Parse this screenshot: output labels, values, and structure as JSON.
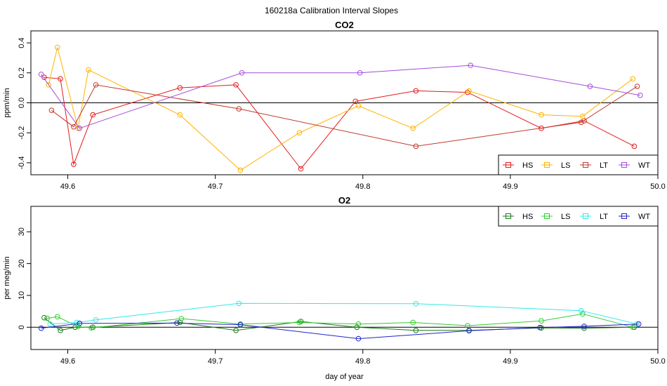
{
  "figure_title": "160218a   Calibration Interval Slopes",
  "chart_data": [
    {
      "type": "line",
      "title": "CO2",
      "xlabel": "",
      "ylabel": "ppm/min",
      "xlim": [
        49.575,
        50.0
      ],
      "ylim": [
        -0.48,
        0.48
      ],
      "xticks": [
        49.6,
        49.7,
        49.8,
        49.9,
        50.0
      ],
      "xtick_labels": [
        "49.6",
        "49.7",
        "49.8",
        "49.9",
        "50.0"
      ],
      "yticks": [
        -0.4,
        -0.2,
        0.0,
        0.2,
        0.4
      ],
      "ytick_labels": [
        "-0.4",
        "-0.2",
        "0.0",
        "0.2",
        "0.4"
      ],
      "hline": 0,
      "legend_position": "bottom-right",
      "series": [
        {
          "name": "HS",
          "color": "#e41a1c",
          "x": [
            49.584,
            49.595,
            49.604,
            49.617,
            49.676,
            49.714,
            49.758,
            49.795,
            49.836,
            49.871,
            49.921,
            49.95,
            49.984
          ],
          "y": [
            0.17,
            0.16,
            -0.41,
            -0.08,
            0.1,
            0.12,
            -0.44,
            0.01,
            0.08,
            0.07,
            -0.17,
            -0.12,
            -0.29
          ]
        },
        {
          "name": "LS",
          "color": "#ffb300",
          "x": [
            49.587,
            49.593,
            49.607,
            49.614,
            49.676,
            49.717,
            49.757,
            49.797,
            49.834,
            49.872,
            49.921,
            49.949,
            49.983
          ],
          "y": [
            0.12,
            0.37,
            -0.17,
            0.22,
            -0.08,
            -0.45,
            -0.2,
            -0.02,
            -0.17,
            0.08,
            -0.08,
            -0.09,
            0.16
          ]
        },
        {
          "name": "LT",
          "color": "#c0392b",
          "x": [
            49.589,
            49.604,
            49.619,
            49.716,
            49.836,
            49.948,
            49.986
          ],
          "y": [
            -0.05,
            -0.16,
            0.12,
            -0.04,
            -0.29,
            -0.13,
            0.11
          ]
        },
        {
          "name": "WT",
          "color": "#a64cd9",
          "x": [
            49.582,
            49.608,
            49.718,
            49.798,
            49.873,
            49.954,
            49.988
          ],
          "y": [
            0.19,
            -0.17,
            0.2,
            0.2,
            0.25,
            0.11,
            0.05
          ]
        }
      ]
    },
    {
      "type": "line",
      "title": "O2",
      "xlabel": "day of year",
      "ylabel": "per meg/min",
      "xlim": [
        49.575,
        50.0
      ],
      "ylim": [
        -7,
        38
      ],
      "xticks": [
        49.6,
        49.7,
        49.8,
        49.9,
        50.0
      ],
      "xtick_labels": [
        "49.6",
        "49.7",
        "49.8",
        "49.9",
        "50.0"
      ],
      "yticks": [
        0,
        10,
        20,
        30
      ],
      "ytick_labels": [
        "0",
        "10",
        "20",
        "30"
      ],
      "hline": 0,
      "legend_position": "top-right",
      "series": [
        {
          "name": "HS",
          "color": "#1a7a1a",
          "x": [
            49.584,
            49.595,
            49.605,
            49.617,
            49.676,
            49.714,
            49.758,
            49.796,
            49.836,
            49.872,
            49.921,
            49.95,
            49.984
          ],
          "y": [
            3.0,
            -1.0,
            0.0,
            0.0,
            1.5,
            -1.0,
            1.8,
            0.0,
            -1.0,
            -1.0,
            -0.2,
            -0.3,
            0.0
          ]
        },
        {
          "name": "LS",
          "color": "#33cc33",
          "x": [
            49.586,
            49.593,
            49.607,
            49.616,
            49.677,
            49.717,
            49.757,
            49.797,
            49.834,
            49.871,
            49.921,
            49.949,
            49.983
          ],
          "y": [
            2.8,
            3.3,
            0.2,
            -0.2,
            2.7,
            1.0,
            1.5,
            1.0,
            1.5,
            0.5,
            2.0,
            4.2,
            0.0
          ]
        },
        {
          "name": "LT",
          "color": "#33e8e8",
          "x": [
            49.588,
            49.606,
            49.619,
            49.716,
            49.836,
            49.948,
            49.986
          ],
          "y": [
            1.0,
            1.5,
            2.3,
            7.5,
            7.4,
            5.2,
            1.0
          ]
        },
        {
          "name": "WT",
          "color": "#2222cc",
          "x": [
            49.582,
            49.608,
            49.674,
            49.717,
            49.797,
            49.872,
            49.92,
            49.95,
            49.987
          ],
          "y": [
            -0.3,
            1.2,
            1.3,
            0.8,
            -3.6,
            -1.1,
            -0.1,
            0.3,
            1.0
          ]
        }
      ]
    }
  ]
}
